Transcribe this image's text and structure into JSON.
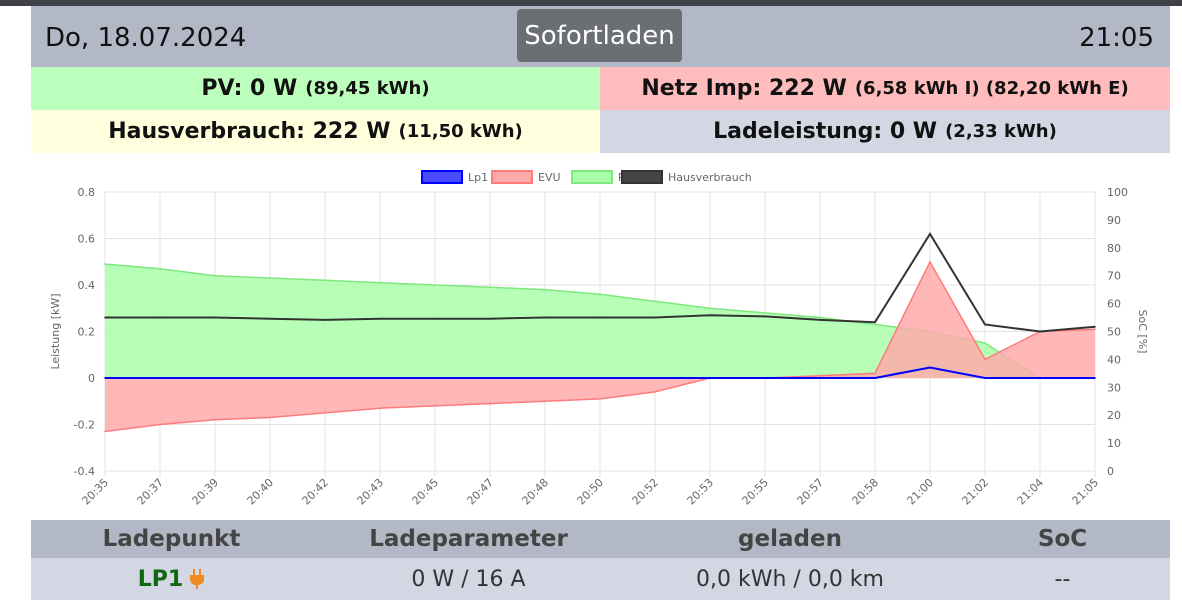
{
  "header": {
    "date": "Do, 18.07.2024",
    "mode_button": "Sofortladen",
    "time": "21:05"
  },
  "tiles": {
    "pv": {
      "main": "PV: 0 W",
      "sub": "(89,45 kWh)",
      "color": "#bcffbc"
    },
    "netz": {
      "main": "Netz Imp: 222 W",
      "sub": "(6,58 kWh I) (82,20 kWh E)",
      "color": "#ffbcbc"
    },
    "haus": {
      "main": "Hausverbrauch: 222 W",
      "sub": "(11,50 kWh)",
      "color": "#ffffdd"
    },
    "lade": {
      "main": "Ladeleistung: 0 W",
      "sub": "(2,33 kWh)",
      "color": "#d2d7e3"
    }
  },
  "chart_data": {
    "type": "area",
    "xlabel": "",
    "ylabel": "Leistung [kW]",
    "ylabel_right": "SoC [%]",
    "ylim": [
      -0.4,
      0.8
    ],
    "yticks": [
      "0.8",
      "0.6",
      "0.4",
      "0.2",
      "0",
      "-0.2",
      "-0.4"
    ],
    "y2lim": [
      0,
      100
    ],
    "y2ticks": [
      "100",
      "90",
      "80",
      "70",
      "60",
      "50",
      "40",
      "30",
      "20",
      "10",
      "0"
    ],
    "x": [
      "20:35",
      "20:37",
      "20:39",
      "20:40",
      "20:42",
      "20:43",
      "20:45",
      "20:47",
      "20:48",
      "20:50",
      "20:52",
      "20:53",
      "20:55",
      "20:57",
      "20:58",
      "21:00",
      "21:02",
      "21:04",
      "21:05"
    ],
    "legend_position": "top",
    "grid": true,
    "series": [
      {
        "name": "Lp1",
        "color": "#0000ff",
        "fill": "#4a4aff",
        "values": [
          0,
          0,
          0,
          0,
          0,
          0,
          0,
          0,
          0,
          0,
          0,
          0,
          0,
          0,
          0,
          0.045,
          0,
          0,
          0
        ]
      },
      {
        "name": "EVU",
        "color": "#ff7b7b",
        "fill": "#ffaaaa",
        "values": [
          -0.23,
          -0.2,
          -0.18,
          -0.17,
          -0.15,
          -0.13,
          -0.12,
          -0.11,
          -0.1,
          -0.09,
          -0.06,
          0,
          0,
          0.01,
          0.02,
          0.5,
          0.08,
          0.2,
          0.21
        ]
      },
      {
        "name": "PV",
        "color": "#7ee87e",
        "fill": "#aaffaa",
        "values": [
          0.49,
          0.47,
          0.44,
          0.43,
          0.42,
          0.41,
          0.4,
          0.39,
          0.38,
          0.36,
          0.33,
          0.3,
          0.28,
          0.26,
          0.23,
          0.2,
          0.15,
          0,
          0
        ]
      },
      {
        "name": "Hausverbrauch",
        "color": "#333333",
        "fill": "#444444",
        "values": [
          0.26,
          0.26,
          0.26,
          0.255,
          0.25,
          0.255,
          0.255,
          0.255,
          0.26,
          0.26,
          0.26,
          0.27,
          0.265,
          0.25,
          0.24,
          0.62,
          0.23,
          0.2,
          0.22
        ]
      }
    ]
  },
  "table": {
    "headers": [
      "Ladepunkt",
      "Ladeparameter",
      "geladen",
      "SoC"
    ],
    "rows": [
      {
        "ladepunkt": "LP1",
        "plug_icon": "plug-icon",
        "ladeparameter": "0 W / 16 A",
        "geladen": "0,0 kWh / 0,0 km",
        "soc": "--"
      }
    ]
  }
}
